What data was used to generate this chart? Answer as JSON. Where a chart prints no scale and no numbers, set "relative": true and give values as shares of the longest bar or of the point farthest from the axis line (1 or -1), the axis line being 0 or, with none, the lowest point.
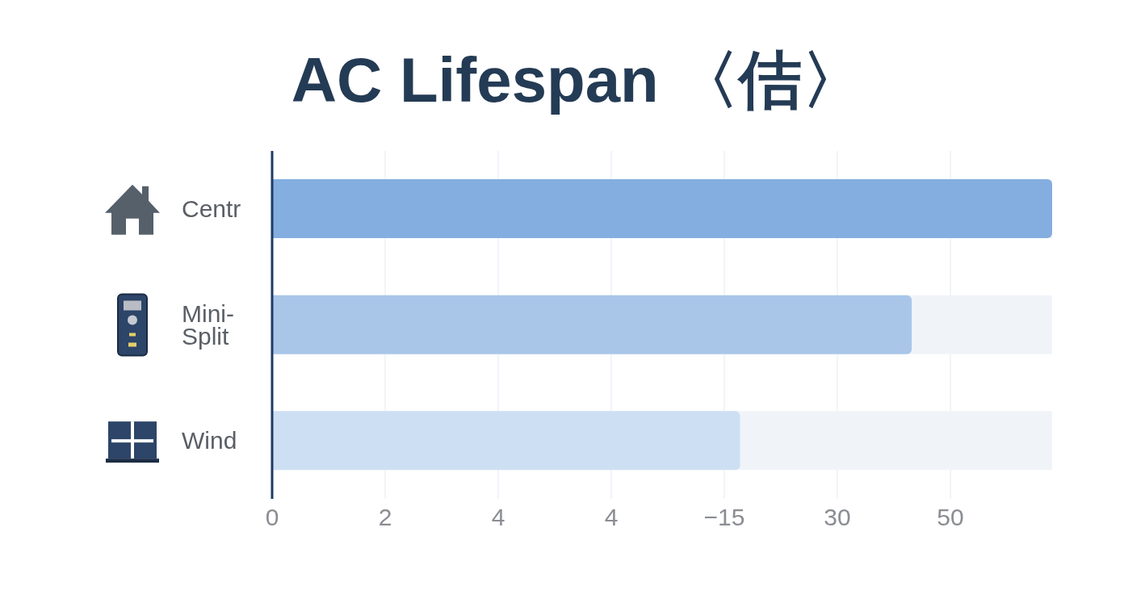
{
  "chart_data": {
    "type": "bar",
    "orientation": "horizontal",
    "title": "AC Lifespan 〈佶〉",
    "categories": [
      "Centr",
      "Mini-Split",
      "Wind"
    ],
    "values": [
      1,
      0.82,
      0.6
    ],
    "colors": [
      "#84aee0",
      "#a9c6e9",
      "#cde0f3"
    ],
    "relative": true,
    "annotations": [
      "0",
      "2",
      "4",
      "4",
      "−15",
      "30",
      "50"
    ],
    "grid": "x"
  }
}
